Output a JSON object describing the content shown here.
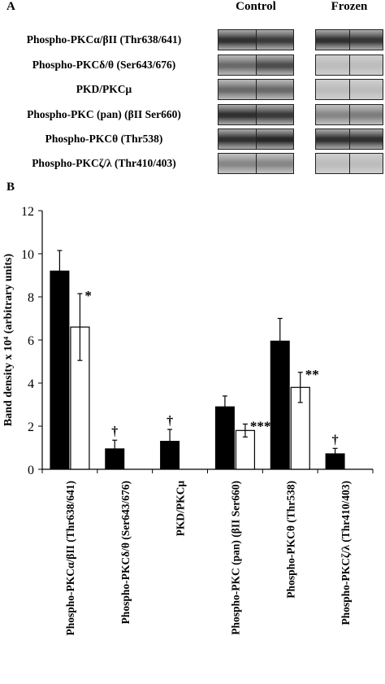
{
  "panel_a": {
    "letter": "A",
    "columns": [
      "Control",
      "Frozen"
    ],
    "rows": [
      {
        "label": "Phospho-PKCα/βII (Thr638/641)",
        "control": [
          0.85,
          0.8
        ],
        "frozen": [
          0.85,
          0.82
        ]
      },
      {
        "label": "Phospho-PKCδ/θ (Ser643/676)",
        "control": [
          0.55,
          0.7
        ],
        "frozen": [
          0.12,
          0.12
        ]
      },
      {
        "label": "PKD/PKCμ",
        "control": [
          0.55,
          0.55
        ],
        "frozen": [
          0.12,
          0.12
        ]
      },
      {
        "label": "Phospho-PKC (pan) (βII Ser660)",
        "control": [
          0.85,
          0.8
        ],
        "frozen": [
          0.4,
          0.45
        ]
      },
      {
        "label": "Phospho-PKCθ (Thr538)",
        "control": [
          0.85,
          0.9
        ],
        "frozen": [
          0.85,
          0.85
        ]
      },
      {
        "label": "Phospho-PKCζ/λ (Thr410/403)",
        "control": [
          0.4,
          0.4
        ],
        "frozen": [
          0.12,
          0.12
        ]
      }
    ]
  },
  "panel_b": {
    "letter": "B"
  },
  "chart_data": {
    "type": "bar",
    "ylabel": "Band density x 10⁴ (arbitrary units)",
    "ylim": [
      0,
      12
    ],
    "yticks": [
      0,
      2,
      4,
      6,
      8,
      10,
      12
    ],
    "grid": false,
    "categories": [
      "Phospho-PKCα/βII (Thr638/641)",
      "Phospho-PKCδ/θ (Ser643/676)",
      "PKD/PKCμ",
      "Phospho-PKC (pan) (βII Ser660)",
      "Phospho-PKCθ (Thr538)",
      "Phospho-PKCζ/λ (Thr410/403)"
    ],
    "series": [
      {
        "color": "#000000",
        "values": [
          9.2,
          0.95,
          1.3,
          2.9,
          5.95,
          0.72
        ],
        "errors": [
          0.95,
          0.4,
          0.55,
          0.5,
          1.05,
          0.25
        ]
      },
      {
        "color": "#ffffff",
        "values": [
          6.6,
          0,
          0,
          1.8,
          3.8,
          0
        ],
        "errors": [
          1.55,
          0,
          0,
          0.3,
          0.7,
          0
        ]
      }
    ],
    "annotations": [
      {
        "category": 0,
        "text": "*"
      },
      {
        "category": 1,
        "text": "†"
      },
      {
        "category": 2,
        "text": "†"
      },
      {
        "category": 3,
        "text": "***"
      },
      {
        "category": 4,
        "text": "**"
      },
      {
        "category": 5,
        "text": "†"
      }
    ]
  },
  "colors": {
    "axis": "#000000",
    "blot_dark": "#1a1a1a",
    "blot_bg": "#d4d4d4"
  }
}
